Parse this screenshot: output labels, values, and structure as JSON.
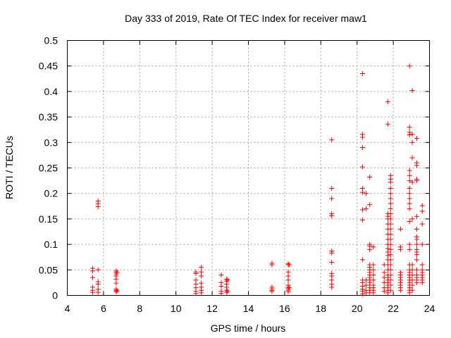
{
  "chart_data": {
    "type": "scatter",
    "title": "Day 333 of 2019, Rate Of TEC Index for receiver maw1",
    "xlabel": "GPS time / hours",
    "ylabel": "ROTI / TECUs",
    "xlim": [
      4,
      24
    ],
    "ylim": [
      0,
      0.5
    ],
    "x_ticks": [
      4,
      6,
      8,
      10,
      12,
      14,
      16,
      18,
      20,
      22,
      24
    ],
    "x_tick_labels": [
      "4",
      "6",
      "8",
      "10",
      "12",
      "14",
      "16",
      "18",
      "20",
      "22",
      "24"
    ],
    "y_ticks": [
      0,
      0.05,
      0.1,
      0.15,
      0.2,
      0.25,
      0.3,
      0.35,
      0.4,
      0.45,
      0.5
    ],
    "y_tick_labels": [
      "0",
      "0.05",
      "0.1",
      "0.15",
      "0.2",
      "0.25",
      "0.3",
      "0.35",
      "0.4",
      "0.45",
      "0.5"
    ],
    "grid": true,
    "marker": "plus",
    "series": [
      {
        "name": "ROTI",
        "color": "#ff0000",
        "points": [
          [
            5.4,
            0.053
          ],
          [
            5.4,
            0.048
          ],
          [
            5.4,
            0.035
          ],
          [
            5.4,
            0.016
          ],
          [
            5.4,
            0.01
          ],
          [
            5.4,
            0.006
          ],
          [
            5.7,
            0.185
          ],
          [
            5.7,
            0.18
          ],
          [
            5.7,
            0.174
          ],
          [
            5.7,
            0.05
          ],
          [
            5.7,
            0.027
          ],
          [
            5.7,
            0.022
          ],
          [
            5.7,
            0.012
          ],
          [
            5.7,
            0.006
          ],
          [
            6.7,
            0.048
          ],
          [
            6.7,
            0.045
          ],
          [
            6.7,
            0.042
          ],
          [
            6.7,
            0.038
          ],
          [
            6.7,
            0.032
          ],
          [
            6.7,
            0.024
          ],
          [
            6.7,
            0.012
          ],
          [
            6.7,
            0.01
          ],
          [
            6.7,
            0.007
          ],
          [
            6.75,
            0.045
          ],
          [
            6.75,
            0.009
          ],
          [
            11.1,
            0.046
          ],
          [
            11.1,
            0.043
          ],
          [
            11.1,
            0.03
          ],
          [
            11.1,
            0.022
          ],
          [
            11.1,
            0.015
          ],
          [
            11.1,
            0.008
          ],
          [
            11.1,
            0.004
          ],
          [
            11.4,
            0.055
          ],
          [
            11.4,
            0.046
          ],
          [
            11.4,
            0.038
          ],
          [
            11.4,
            0.024
          ],
          [
            11.4,
            0.016
          ],
          [
            11.4,
            0.01
          ],
          [
            11.4,
            0.005
          ],
          [
            12.5,
            0.04
          ],
          [
            12.5,
            0.025
          ],
          [
            12.5,
            0.018
          ],
          [
            12.5,
            0.008
          ],
          [
            12.5,
            0.004
          ],
          [
            12.8,
            0.032
          ],
          [
            12.8,
            0.028
          ],
          [
            12.8,
            0.022
          ],
          [
            12.8,
            0.016
          ],
          [
            12.8,
            0.01
          ],
          [
            12.8,
            0.006
          ],
          [
            12.85,
            0.03
          ],
          [
            12.85,
            0.008
          ],
          [
            15.3,
            0.063
          ],
          [
            15.3,
            0.06
          ],
          [
            15.3,
            0.016
          ],
          [
            15.3,
            0.013
          ],
          [
            15.3,
            0.01
          ],
          [
            15.3,
            0.008
          ],
          [
            16.2,
            0.062
          ],
          [
            16.2,
            0.06
          ],
          [
            16.2,
            0.046
          ],
          [
            16.2,
            0.038
          ],
          [
            16.2,
            0.03
          ],
          [
            16.2,
            0.02
          ],
          [
            16.2,
            0.016
          ],
          [
            16.2,
            0.013
          ],
          [
            16.2,
            0.01
          ],
          [
            16.2,
            0.007
          ],
          [
            16.25,
            0.06
          ],
          [
            16.25,
            0.015
          ],
          [
            18.6,
            0.305
          ],
          [
            18.6,
            0.21
          ],
          [
            18.6,
            0.19
          ],
          [
            18.6,
            0.16
          ],
          [
            18.6,
            0.156
          ],
          [
            18.6,
            0.087
          ],
          [
            18.6,
            0.083
          ],
          [
            18.6,
            0.065
          ],
          [
            18.6,
            0.043
          ],
          [
            18.6,
            0.038
          ],
          [
            18.6,
            0.03
          ],
          [
            18.6,
            0.022
          ],
          [
            18.6,
            0.016
          ],
          [
            20.3,
            0.435
          ],
          [
            20.3,
            0.316
          ],
          [
            20.3,
            0.31
          ],
          [
            20.3,
            0.29
          ],
          [
            20.3,
            0.252
          ],
          [
            20.3,
            0.21
          ],
          [
            20.3,
            0.202
          ],
          [
            20.3,
            0.168
          ],
          [
            20.3,
            0.148
          ],
          [
            20.3,
            0.07
          ],
          [
            20.3,
            0.03
          ],
          [
            20.3,
            0.025
          ],
          [
            20.3,
            0.018
          ],
          [
            20.3,
            0.012
          ],
          [
            20.3,
            0.008
          ],
          [
            20.3,
            0.003
          ],
          [
            20.5,
            0.2
          ],
          [
            20.5,
            0.17
          ],
          [
            20.5,
            0.03
          ],
          [
            20.5,
            0.02
          ],
          [
            20.5,
            0.01
          ],
          [
            20.5,
            0.005
          ],
          [
            20.7,
            0.232
          ],
          [
            20.7,
            0.178
          ],
          [
            20.7,
            0.1
          ],
          [
            20.7,
            0.097
          ],
          [
            20.7,
            0.09
          ],
          [
            20.7,
            0.06
          ],
          [
            20.7,
            0.055
          ],
          [
            20.7,
            0.05
          ],
          [
            20.7,
            0.045
          ],
          [
            20.7,
            0.04
          ],
          [
            20.7,
            0.035
          ],
          [
            20.7,
            0.03
          ],
          [
            20.7,
            0.025
          ],
          [
            20.7,
            0.02
          ],
          [
            20.7,
            0.015
          ],
          [
            20.7,
            0.01
          ],
          [
            20.7,
            0.005
          ],
          [
            20.9,
            0.095
          ],
          [
            20.9,
            0.06
          ],
          [
            20.9,
            0.05
          ],
          [
            20.9,
            0.04
          ],
          [
            20.9,
            0.03
          ],
          [
            20.9,
            0.02
          ],
          [
            20.9,
            0.015
          ],
          [
            20.9,
            0.01
          ],
          [
            20.9,
            0.005
          ],
          [
            21.5,
            0.06
          ],
          [
            21.5,
            0.045
          ],
          [
            21.5,
            0.035
          ],
          [
            21.5,
            0.025
          ],
          [
            21.5,
            0.015
          ],
          [
            21.5,
            0.008
          ],
          [
            21.7,
            0.38
          ],
          [
            21.7,
            0.336
          ],
          [
            21.7,
            0.16
          ],
          [
            21.7,
            0.155
          ],
          [
            21.7,
            0.15
          ],
          [
            21.7,
            0.14
          ],
          [
            21.7,
            0.13
          ],
          [
            21.7,
            0.12
          ],
          [
            21.7,
            0.11
          ],
          [
            21.7,
            0.1
          ],
          [
            21.7,
            0.092
          ],
          [
            21.7,
            0.085
          ],
          [
            21.7,
            0.078
          ],
          [
            21.7,
            0.07
          ],
          [
            21.7,
            0.06
          ],
          [
            21.7,
            0.05
          ],
          [
            21.7,
            0.04
          ],
          [
            21.7,
            0.035
          ],
          [
            21.7,
            0.03
          ],
          [
            21.7,
            0.025
          ],
          [
            21.7,
            0.02
          ],
          [
            21.7,
            0.015
          ],
          [
            21.7,
            0.01
          ],
          [
            21.7,
            0.005
          ],
          [
            21.85,
            0.235
          ],
          [
            21.85,
            0.228
          ],
          [
            21.85,
            0.222
          ],
          [
            21.85,
            0.21
          ],
          [
            21.85,
            0.2
          ],
          [
            21.85,
            0.19
          ],
          [
            21.85,
            0.18
          ],
          [
            21.85,
            0.17
          ],
          [
            21.85,
            0.16
          ],
          [
            21.85,
            0.15
          ],
          [
            21.85,
            0.14
          ],
          [
            21.85,
            0.13
          ],
          [
            21.85,
            0.12
          ],
          [
            21.85,
            0.11
          ],
          [
            21.85,
            0.1
          ],
          [
            21.85,
            0.09
          ],
          [
            21.85,
            0.08
          ],
          [
            21.85,
            0.07
          ],
          [
            21.85,
            0.06
          ],
          [
            21.85,
            0.05
          ],
          [
            21.85,
            0.04
          ],
          [
            21.85,
            0.03
          ],
          [
            21.85,
            0.02
          ],
          [
            21.85,
            0.01
          ],
          [
            22.4,
            0.13
          ],
          [
            22.4,
            0.095
          ],
          [
            22.4,
            0.09
          ],
          [
            22.4,
            0.045
          ],
          [
            22.4,
            0.04
          ],
          [
            22.4,
            0.035
          ],
          [
            22.4,
            0.03
          ],
          [
            22.4,
            0.025
          ],
          [
            22.4,
            0.02
          ],
          [
            22.4,
            0.015
          ],
          [
            22.4,
            0.01
          ],
          [
            22.9,
            0.45
          ],
          [
            22.9,
            0.33
          ],
          [
            22.9,
            0.32
          ],
          [
            22.9,
            0.315
          ],
          [
            22.9,
            0.245
          ],
          [
            22.9,
            0.235
          ],
          [
            22.9,
            0.225
          ],
          [
            22.9,
            0.21
          ],
          [
            22.9,
            0.2
          ],
          [
            22.9,
            0.19
          ],
          [
            22.9,
            0.18
          ],
          [
            22.9,
            0.17
          ],
          [
            22.9,
            0.145
          ],
          [
            22.9,
            0.1
          ],
          [
            22.9,
            0.09
          ],
          [
            22.9,
            0.06
          ],
          [
            22.9,
            0.05
          ],
          [
            22.9,
            0.045
          ],
          [
            22.9,
            0.04
          ],
          [
            22.9,
            0.035
          ],
          [
            22.9,
            0.03
          ],
          [
            22.9,
            0.025
          ],
          [
            22.9,
            0.02
          ],
          [
            22.9,
            0.015
          ],
          [
            22.9,
            0.01
          ],
          [
            22.9,
            0.005
          ],
          [
            23.05,
            0.402
          ],
          [
            23.05,
            0.316
          ],
          [
            23.05,
            0.3
          ],
          [
            23.05,
            0.27
          ],
          [
            23.05,
            0.222
          ],
          [
            23.05,
            0.15
          ],
          [
            23.05,
            0.06
          ],
          [
            23.05,
            0.05
          ],
          [
            23.05,
            0.04
          ],
          [
            23.05,
            0.03
          ],
          [
            23.05,
            0.02
          ],
          [
            23.05,
            0.01
          ],
          [
            23.3,
            0.308
          ],
          [
            23.3,
            0.26
          ],
          [
            23.3,
            0.255
          ],
          [
            23.3,
            0.228
          ],
          [
            23.3,
            0.225
          ],
          [
            23.3,
            0.155
          ],
          [
            23.3,
            0.13
          ],
          [
            23.3,
            0.115
          ],
          [
            23.3,
            0.11
          ],
          [
            23.3,
            0.1
          ],
          [
            23.3,
            0.09
          ],
          [
            23.3,
            0.085
          ],
          [
            23.3,
            0.08
          ],
          [
            23.3,
            0.07
          ],
          [
            23.3,
            0.05
          ],
          [
            23.3,
            0.04
          ],
          [
            23.3,
            0.035
          ],
          [
            23.3,
            0.03
          ],
          [
            23.3,
            0.025
          ],
          [
            23.6,
            0.176
          ],
          [
            23.6,
            0.165
          ],
          [
            23.6,
            0.14
          ],
          [
            23.6,
            0.1
          ],
          [
            23.6,
            0.06
          ],
          [
            23.6,
            0.05
          ],
          [
            23.6,
            0.045
          ],
          [
            23.6,
            0.04
          ],
          [
            23.6,
            0.035
          ],
          [
            23.6,
            0.03
          ],
          [
            23.6,
            0.025
          ]
        ]
      }
    ]
  }
}
